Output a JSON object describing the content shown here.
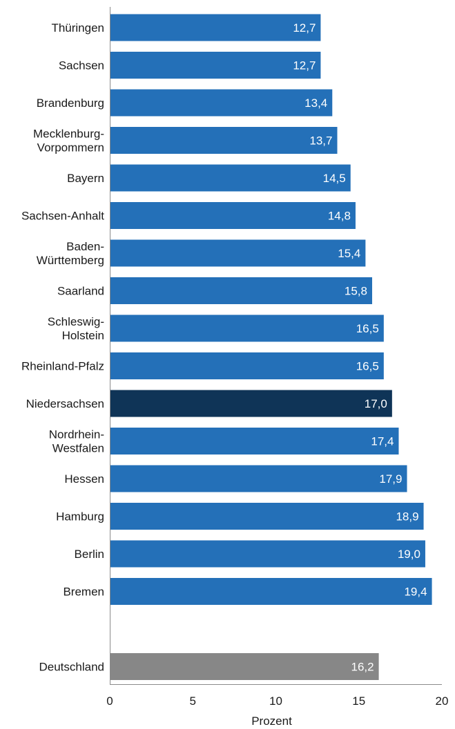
{
  "chart_data": {
    "type": "bar",
    "orientation": "horizontal",
    "categories": [
      "Thüringen",
      "Sachsen",
      "Brandenburg",
      "Mecklenburg-\nVorpommern",
      "Bayern",
      "Sachsen-Anhalt",
      "Baden-\nWürttemberg",
      "Saarland",
      "Schleswig-\nHolstein",
      "Rheinland-Pfalz",
      "Niedersachsen",
      "Nordrhein-\nWestfalen",
      "Hessen",
      "Hamburg",
      "Berlin",
      "Bremen",
      "",
      "Deutschland"
    ],
    "values": [
      12.7,
      12.7,
      13.4,
      13.7,
      14.5,
      14.8,
      15.4,
      15.8,
      16.5,
      16.5,
      17.0,
      17.4,
      17.9,
      18.9,
      19.0,
      19.4,
      null,
      16.2
    ],
    "value_labels": [
      "12,7",
      "12,7",
      "13,4",
      "13,7",
      "14,5",
      "14,8",
      "15,4",
      "15,8",
      "16,5",
      "16,5",
      "17,0",
      "17,4",
      "17,9",
      "18,9",
      "19,0",
      "19,4",
      "",
      "16,2"
    ],
    "bar_colors": [
      "#2470b8",
      "#2470b8",
      "#2470b8",
      "#2470b8",
      "#2470b8",
      "#2470b8",
      "#2470b8",
      "#2470b8",
      "#2470b8",
      "#2470b8",
      "#0f3457",
      "#2470b8",
      "#2470b8",
      "#2470b8",
      "#2470b8",
      "#2470b8",
      "",
      "#878787"
    ],
    "xlabel": "Prozent",
    "ylabel": "",
    "title": "",
    "xlim": [
      0,
      20
    ],
    "xticks": [
      0,
      5,
      10,
      15,
      20
    ],
    "xtick_labels": [
      "0",
      "5",
      "10",
      "15",
      "20"
    ],
    "grid": false,
    "legend": "none"
  }
}
